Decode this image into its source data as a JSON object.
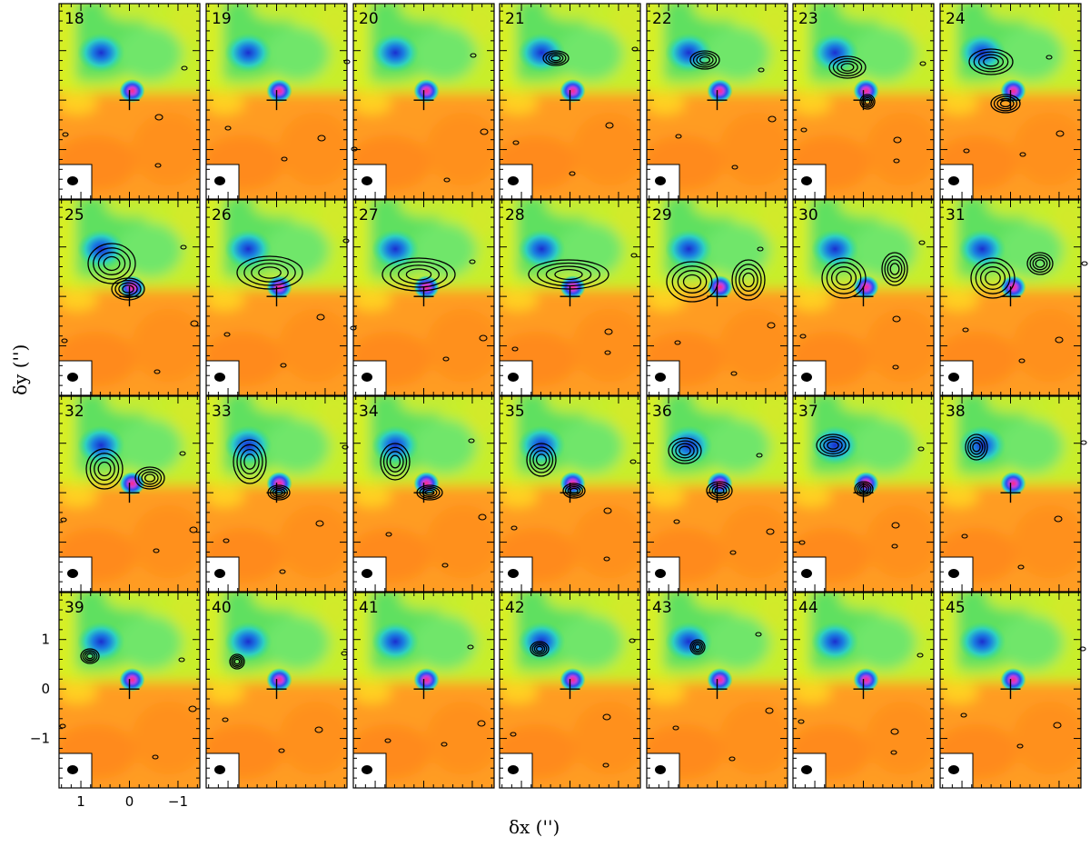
{
  "chart_data": {
    "type": "channel-map-grid",
    "xlabel": "δx ('')",
    "ylabel": "δy ('')",
    "rows": 4,
    "cols": 7,
    "xlim": [
      1.45,
      -1.45
    ],
    "ylim": [
      -2.0,
      1.95
    ],
    "xticks": [
      1,
      0,
      -1
    ],
    "xtick_labels": [
      "1",
      "0",
      "−1"
    ],
    "yticks": [
      1,
      0,
      -1
    ],
    "ytick_labels": [
      "1",
      "0",
      "−1"
    ],
    "channels": [
      "18",
      "19",
      "20",
      "21",
      "22",
      "23",
      "24",
      "25",
      "26",
      "27",
      "28",
      "29",
      "30",
      "31",
      "32",
      "33",
      "34",
      "35",
      "36",
      "37",
      "38",
      "39",
      "40",
      "41",
      "42",
      "43",
      "44",
      "45"
    ],
    "background": {
      "description": "false-colour continuum/moment map shared by all panels",
      "colors": [
        "#ff9a1a",
        "#ffd21f",
        "#b8f22a",
        "#3fe07a",
        "#1aa8e0",
        "#1a2fd0",
        "#ff2a8a"
      ],
      "blue_peak": [
        0.85,
        0.85
      ],
      "compact_source": [
        0.0,
        0.0
      ]
    },
    "marker": {
      "x": 0,
      "y": 0
    },
    "beam": {
      "major": 0.22,
      "minor": 0.17
    }
  },
  "colors": {
    "contour": "#000000",
    "frame": "#000000"
  }
}
